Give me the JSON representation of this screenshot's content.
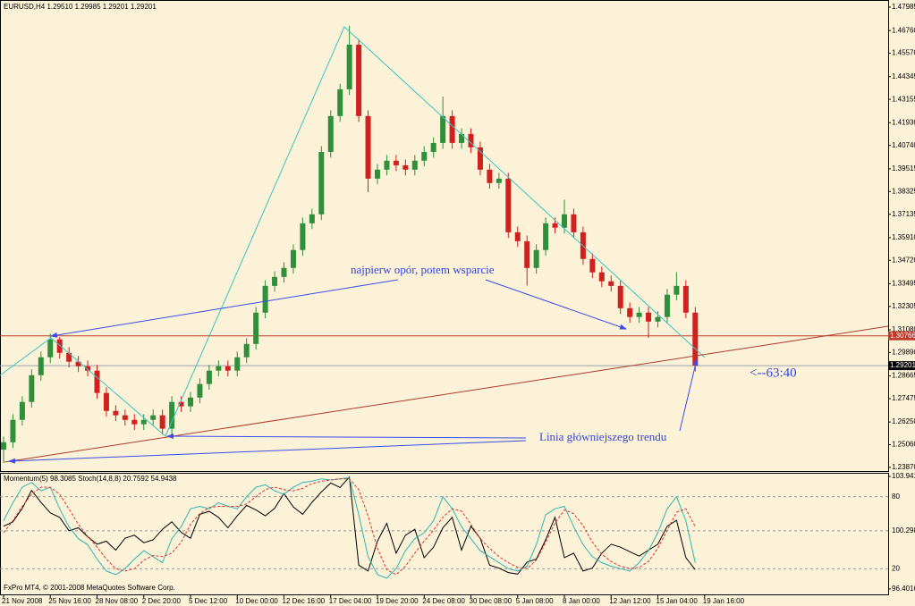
{
  "chart_data": [
    {
      "type": "candlestick",
      "title": "EURUSD,H4  1.29510 1.29985 1.29201 1.29201",
      "categories": [
        "21 Nov 2008",
        null,
        null,
        null,
        null,
        "25 Nov 16:00",
        null,
        null,
        null,
        null,
        "28 Nov 08:00",
        null,
        null,
        null,
        null,
        "2 Dec 20:00",
        null,
        null,
        null,
        null,
        "5 Dec 12:00",
        null,
        null,
        null,
        null,
        "10 Dec 00:00",
        null,
        null,
        null,
        null,
        "12 Dec 16:00",
        null,
        null,
        null,
        null,
        "17 Dec 04:00",
        null,
        null,
        null,
        null,
        "19 Dec 20:00",
        null,
        null,
        null,
        null,
        "24 Dec 08:00",
        null,
        null,
        null,
        null,
        "30 Dec 08:00",
        null,
        null,
        null,
        null,
        "5 Jan 08:00",
        null,
        null,
        null,
        null,
        "8 Jan 00:00",
        null,
        null,
        null,
        null,
        "12 Jan 12:00",
        null,
        null,
        null,
        null,
        "15 Jan 04:00",
        null,
        null,
        null,
        null,
        "19 Jan 16:00"
      ],
      "open": [
        1.248,
        1.2519,
        1.2636,
        1.273,
        1.287,
        1.2964,
        1.3058,
        1.2987,
        1.2941,
        1.2917,
        1.2894,
        1.2777,
        1.2683,
        1.266,
        1.2636,
        1.2613,
        1.2636,
        1.266,
        1.259,
        1.273,
        1.2707,
        1.2753,
        1.2824,
        1.2894,
        1.2917,
        1.2894,
        1.2964,
        1.3034,
        1.3198,
        1.3338,
        1.3385,
        1.3432,
        1.3526,
        1.3666,
        1.3713,
        1.404,
        1.4228,
        1.4368,
        1.4602,
        1.4228,
        1.39,
        1.3947,
        1.3994,
        1.397,
        1.3947,
        1.3994,
        1.404,
        1.4087,
        1.4228,
        1.4087,
        1.4134,
        1.4064,
        1.3947,
        1.3877,
        1.39,
        1.3619,
        1.3572,
        1.3432,
        1.3526,
        1.3666,
        1.3643,
        1.3713,
        1.3619,
        1.3479,
        1.3409,
        1.3362,
        1.3338,
        1.3221,
        1.3175,
        1.3198,
        1.3151,
        1.3175,
        1.3292,
        1.3338,
        1.3198,
        null
      ],
      "high": [
        1.2549,
        1.2666,
        1.276,
        1.29,
        1.2994,
        1.3088,
        1.307,
        1.3017,
        1.2971,
        1.2947,
        1.2924,
        1.2807,
        1.2713,
        1.269,
        1.2666,
        1.2666,
        1.269,
        1.269,
        1.276,
        1.276,
        1.2783,
        1.2854,
        1.2924,
        1.2947,
        1.2947,
        1.2994,
        1.3064,
        1.3228,
        1.3368,
        1.3415,
        1.3462,
        1.3556,
        1.3696,
        1.3743,
        1.407,
        1.4258,
        1.4398,
        1.47,
        1.4632,
        1.4258,
        1.3977,
        1.4024,
        1.4024,
        1.4,
        1.4024,
        1.407,
        1.4117,
        1.433,
        1.4258,
        1.4164,
        1.4164,
        1.4094,
        1.3977,
        1.393,
        1.393,
        1.3649,
        1.3602,
        1.3556,
        1.3696,
        1.3696,
        1.379,
        1.3743,
        1.3649,
        1.3509,
        1.3439,
        1.3392,
        1.3368,
        1.3251,
        1.3228,
        1.3228,
        1.3205,
        1.3322,
        1.341,
        1.3368,
        1.3228,
        null
      ],
      "low": [
        1.241,
        1.2489,
        1.2606,
        1.27,
        1.284,
        1.2934,
        1.2957,
        1.2911,
        1.2887,
        1.2864,
        1.2747,
        1.2653,
        1.263,
        1.2606,
        1.2583,
        1.2583,
        1.2606,
        1.256,
        1.256,
        1.2677,
        1.2677,
        1.2723,
        1.2794,
        1.2864,
        1.2864,
        1.2864,
        1.2934,
        1.3004,
        1.3168,
        1.3308,
        1.3355,
        1.3402,
        1.3496,
        1.3636,
        1.3683,
        1.401,
        1.4198,
        1.4338,
        1.4198,
        1.383,
        1.387,
        1.3917,
        1.394,
        1.3917,
        1.3917,
        1.3964,
        1.401,
        1.4057,
        1.4057,
        1.4057,
        1.4034,
        1.3917,
        1.3847,
        1.3847,
        1.3589,
        1.3542,
        1.334,
        1.3402,
        1.3496,
        1.3613,
        1.3613,
        1.3589,
        1.3449,
        1.3379,
        1.3332,
        1.3308,
        1.3191,
        1.3145,
        1.3145,
        1.3065,
        1.3121,
        1.3145,
        1.3262,
        1.3168,
        1.289,
        null
      ],
      "close": [
        1.2519,
        1.2636,
        1.273,
        1.287,
        1.2964,
        1.3058,
        1.2987,
        1.2941,
        1.2917,
        1.2894,
        1.2777,
        1.2683,
        1.266,
        1.2636,
        1.2613,
        1.2636,
        1.266,
        1.259,
        1.273,
        1.2707,
        1.2753,
        1.2824,
        1.2894,
        1.2917,
        1.2894,
        1.2964,
        1.3034,
        1.3198,
        1.3338,
        1.3385,
        1.3432,
        1.3526,
        1.3666,
        1.3713,
        1.404,
        1.4228,
        1.4368,
        1.4602,
        1.4228,
        1.39,
        1.3947,
        1.3994,
        1.397,
        1.3947,
        1.3994,
        1.404,
        1.4087,
        1.4228,
        1.4087,
        1.4134,
        1.4064,
        1.3947,
        1.3877,
        1.39,
        1.3619,
        1.3572,
        1.3432,
        1.3526,
        1.3666,
        1.3643,
        1.3713,
        1.3619,
        1.3479,
        1.3409,
        1.3362,
        1.3338,
        1.3221,
        1.3175,
        1.3198,
        1.3151,
        1.3175,
        1.3292,
        1.3338,
        1.3198,
        1.292,
        null
      ],
      "up_color": "#2f8f3a",
      "down_color": "#d02020",
      "ylim": [
        1.2368,
        1.4836
      ],
      "yticks": [
        1.47985,
        {
          "value": 1.4676,
          "label": "1.46760"
        },
        {
          "value": 1.4557,
          "label": "1.45570"
        },
        1.44345,
        1.43155,
        {
          "value": 1.4193,
          "label": "1.41930"
        },
        {
          "value": 1.4074,
          "label": "1.40740"
        },
        1.39515,
        1.38325,
        1.37135,
        {
          "value": 1.3591,
          "label": "1.35910"
        },
        {
          "value": 1.3472,
          "label": "1.34720"
        },
        1.33495,
        1.32305,
        {
          "value": 1.3108,
          "label": "1.31080"
        },
        {
          "value": 1.2989,
          "label": "1.29890"
        },
        1.28665,
        1.27475,
        {
          "value": 1.2625,
          "label": "1.26250"
        },
        {
          "value": 1.2506,
          "label": "1.25060"
        },
        {
          "value": 1.2387,
          "label": "1.23870"
        }
      ],
      "hlines": [
        {
          "value": 1.30766,
          "color": "#c0392b"
        },
        {
          "value": 1.29201,
          "color": "#9aa4b0"
        }
      ],
      "annotations": [
        "najpierw opór, potem wsparcie",
        "Linia główniejszego trendu",
        "<--63:40"
      ],
      "footer": "FxPro MT4, © 2001-2008 MetaQuotes Software Corp."
    },
    {
      "type": "line",
      "title": "Momentum(5) 98.3085  Stoch(14,8,8) 20.7592 54.9438",
      "ylim": [
        0,
        100
      ],
      "yticks": [
        20,
        80
      ],
      "y2lim": [
        96.16,
        104.18
      ],
      "y2ticks": [
        103.9413,
        100.2986,
        96.4016
      ],
      "series": [
        {
          "color": "#000000",
          "axis": "y2",
          "values": [
            100.6,
            100.9,
            101.8,
            103.0,
            102.2,
            101.5,
            101.2,
            100.3,
            100.5,
            99.9,
            99.4,
            99.6,
            99.0,
            99.8,
            100.0,
            99.5,
            99.7,
            100.4,
            100.9,
            100.2,
            99.8,
            101.4,
            101.6,
            101.2,
            100.5,
            101.3,
            102.0,
            101.7,
            101.3,
            101.8,
            102.8,
            101.9,
            101.4,
            102.2,
            102.9,
            103.5,
            103.2,
            103.9,
            98.0,
            97.6,
            99.6,
            100.8,
            98.8,
            100.0,
            100.4,
            98.5,
            99.2,
            100.5,
            101.2,
            99.0,
            100.6,
            99.8,
            98.0,
            97.8,
            97.5,
            97.4,
            98.2,
            98.4,
            99.7,
            101.2,
            98.5,
            98.8,
            97.6,
            97.8,
            98.8,
            99.4,
            99.2,
            98.9,
            98.6,
            99.0,
            99.4,
            100.6,
            101.0,
            98.5,
            97.7,
            null
          ]
        },
        {
          "color": "#2fb5b0",
          "values": [
            60,
            75,
            88,
            92,
            85,
            88,
            70,
            55,
            45,
            40,
            28,
            18,
            15,
            20,
            28,
            35,
            30,
            25,
            45,
            55,
            70,
            72,
            70,
            75,
            72,
            70,
            80,
            88,
            90,
            85,
            82,
            88,
            92,
            93,
            95,
            94,
            95,
            96,
            65,
            30,
            15,
            12,
            20,
            35,
            45,
            50,
            60,
            80,
            70,
            55,
            45,
            35,
            30,
            25,
            20,
            18,
            22,
            40,
            65,
            70,
            72,
            55,
            40,
            30,
            25,
            22,
            20,
            18,
            25,
            35,
            50,
            70,
            80,
            60,
            25,
            null
          ]
        },
        {
          "color": "#e03030",
          "dashed": true,
          "values": [
            50,
            60,
            72,
            82,
            88,
            88,
            82,
            70,
            57,
            47,
            38,
            28,
            20,
            18,
            20,
            27,
            31,
            30,
            33,
            42,
            57,
            66,
            71,
            72,
            72,
            72,
            74,
            80,
            86,
            88,
            86,
            85,
            87,
            91,
            93,
            94,
            95,
            95,
            86,
            64,
            37,
            19,
            15,
            22,
            33,
            43,
            52,
            63,
            70,
            68,
            57,
            45,
            37,
            30,
            25,
            21,
            20,
            27,
            42,
            58,
            69,
            66,
            56,
            42,
            32,
            26,
            22,
            20,
            21,
            26,
            37,
            52,
            67,
            70,
            55,
            null
          ]
        }
      ]
    }
  ]
}
